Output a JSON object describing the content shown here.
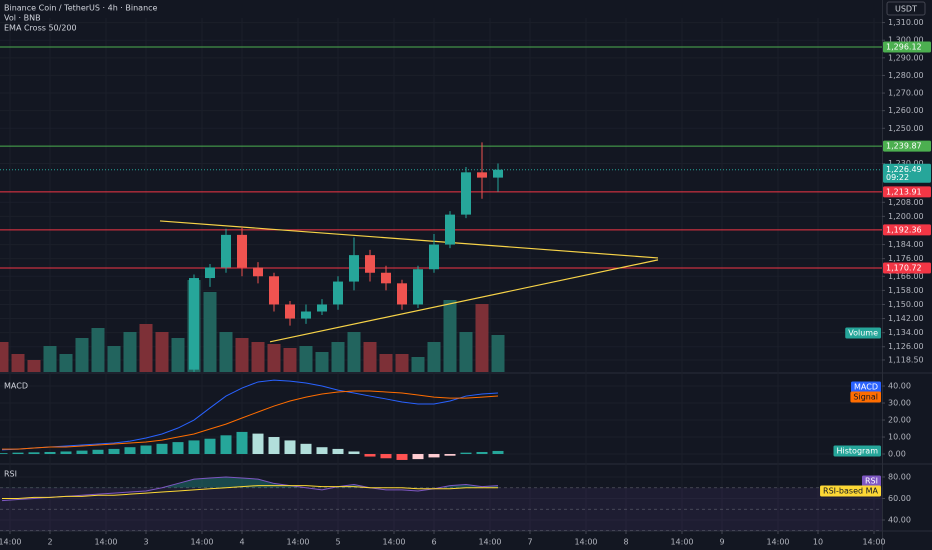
{
  "chart_data": [
    {
      "type": "candlestick",
      "title": "Binance Coin / TetherUS · 4h · Binance",
      "indicators": [
        "Vol · BNB",
        "EMA Cross 50/200"
      ],
      "currency": "USDT",
      "x": [
        36,
        40,
        44,
        48,
        52,
        56,
        60,
        64,
        68,
        72,
        76,
        80,
        84,
        88,
        92,
        96,
        100,
        104,
        108,
        112
      ],
      "open": [
        1113,
        1165,
        1171,
        1189.5,
        1171,
        1166,
        1150,
        1142,
        1146,
        1150,
        1163,
        1178,
        1168,
        1162,
        1150,
        1170,
        1184,
        1201,
        1225,
        1222
      ],
      "high": [
        1167,
        1173,
        1193,
        1194,
        1174,
        1168,
        1152,
        1150,
        1153,
        1166,
        1188,
        1181,
        1172,
        1164,
        1172,
        1190,
        1203,
        1228,
        1242,
        1230
      ],
      "low": [
        1110,
        1160,
        1168,
        1166,
        1162,
        1146,
        1138,
        1139,
        1144,
        1147,
        1158,
        1163,
        1158,
        1147,
        1148,
        1168,
        1182,
        1199,
        1210,
        1214
      ],
      "close": [
        1165,
        1171,
        1189.5,
        1171,
        1166,
        1150,
        1142,
        1146,
        1150,
        1163,
        1178,
        1168,
        1162,
        1150,
        1170,
        1184,
        1201,
        1225,
        1222,
        1226.49
      ],
      "up_color": "#26a69a",
      "down_color": "#ef5350",
      "xlim": [
        -12.5,
        208
      ],
      "xticks": [
        {
          "value": -10,
          "label": "14:00"
        },
        {
          "value": 0,
          "label": "2"
        },
        {
          "value": 14,
          "label": "14:00"
        },
        {
          "value": 24,
          "label": "3"
        },
        {
          "value": 38,
          "label": "14:00"
        },
        {
          "value": 48,
          "label": "4"
        },
        {
          "value": 62,
          "label": "14:00"
        },
        {
          "value": 72,
          "label": "5"
        },
        {
          "value": 86,
          "label": "14:00"
        },
        {
          "value": 96,
          "label": "6"
        },
        {
          "value": 110,
          "label": "14:00"
        },
        {
          "value": 120,
          "label": "7"
        },
        {
          "value": 134,
          "label": "14:00"
        },
        {
          "value": 144,
          "label": "8"
        },
        {
          "value": 158,
          "label": "14:00"
        },
        {
          "value": 168,
          "label": "9"
        },
        {
          "value": 182,
          "label": "14:00"
        },
        {
          "value": 192,
          "label": "10"
        },
        {
          "value": 206,
          "label": "14:00"
        }
      ],
      "ylim": [
        1112.8,
        1312.6
      ],
      "yticks": [
        {
          "value": 1118.5,
          "label": "1,118.50"
        },
        {
          "value": 1126,
          "label": "1,126.00"
        },
        {
          "value": 1134,
          "label": "1,134.00"
        },
        {
          "value": 1142,
          "label": "1,142.00"
        },
        {
          "value": 1150,
          "label": "1,150.00"
        },
        {
          "value": 1158,
          "label": "1,158.00"
        },
        {
          "value": 1166,
          "label": "1,166.00"
        },
        {
          "value": 1176,
          "label": "1,176.00"
        },
        {
          "value": 1184,
          "label": "1,184.00"
        },
        {
          "value": 1200,
          "label": "1,200.00"
        },
        {
          "value": 1208,
          "label": "1,208.00"
        },
        {
          "value": 1230,
          "label": "1,230.00"
        },
        {
          "value": 1250,
          "label": "1,250.00"
        },
        {
          "value": 1260,
          "label": "1,260.00"
        },
        {
          "value": 1270,
          "label": "1,270.00"
        },
        {
          "value": 1280,
          "label": "1,280.00"
        },
        {
          "value": 1290,
          "label": "1,290.00"
        },
        {
          "value": 1300,
          "label": "1,300.00"
        },
        {
          "value": 1310,
          "label": "1,310.00"
        }
      ],
      "levels": [
        {
          "value": 1296.12,
          "label": "1,296.12",
          "color": "#4caf50"
        },
        {
          "value": 1239.87,
          "label": "1,239.87",
          "color": "#4caf50"
        },
        {
          "value": 1213.91,
          "label": "1,213.91",
          "color": "#f23645"
        },
        {
          "value": 1192.36,
          "label": "1,192.36",
          "color": "#f23645"
        },
        {
          "value": 1170.72,
          "label": "1,170.72",
          "color": "#f23645"
        }
      ],
      "last": {
        "value": 1226.49,
        "label": "1,226.49",
        "countdown": "09:22",
        "color": "#26a69a"
      },
      "trendlines": [
        {
          "x": [
            27.5,
            152
          ],
          "y": [
            1197.4,
            1176.4
          ],
          "color": "#f7d348"
        },
        {
          "x": [
            55,
            152
          ],
          "y": [
            1128.8,
            1175.3
          ],
          "color": "#f7d348"
        }
      ],
      "volume": {
        "name": "Volume",
        "color": "#26a69a",
        "x": [
          -12,
          -8,
          -4,
          0,
          4,
          8,
          12,
          16,
          20,
          24,
          28,
          32,
          36,
          40,
          44,
          48,
          52,
          56,
          60,
          64,
          68,
          72,
          76,
          80,
          84,
          88,
          92,
          96,
          100,
          104,
          108,
          112
        ],
        "values": [
          30,
          18,
          12,
          26,
          18,
          34,
          44,
          26,
          40,
          48,
          40,
          34,
          92,
          80,
          40,
          34,
          30,
          28,
          24,
          26,
          20,
          30,
          40,
          30,
          18,
          18,
          15,
          30,
          72,
          40,
          68,
          37
        ],
        "colors": [
          "#7d3037",
          "#7d3037",
          "#7d3037",
          "#22645e",
          "#22645e",
          "#22645e",
          "#22645e",
          "#22645e",
          "#22645e",
          "#7d3037",
          "#7d3037",
          "#22645e",
          "#22645e",
          "#22645e",
          "#22645e",
          "#7d3037",
          "#7d3037",
          "#7d3037",
          "#7d3037",
          "#22645e",
          "#22645e",
          "#22645e",
          "#22645e",
          "#7d3037",
          "#7d3037",
          "#7d3037",
          "#22645e",
          "#22645e",
          "#22645e",
          "#22645e",
          "#7d3037",
          "#22645e"
        ],
        "ylim": [
          0,
          100
        ]
      }
    },
    {
      "type": "macd",
      "title": "MACD",
      "x": [
        -12,
        -8,
        -4,
        0,
        4,
        8,
        12,
        16,
        20,
        24,
        28,
        32,
        36,
        40,
        44,
        48,
        52,
        56,
        60,
        64,
        68,
        72,
        76,
        80,
        84,
        88,
        92,
        96,
        100,
        104,
        108,
        112
      ],
      "xlim": [
        -12.5,
        208
      ],
      "ylim": [
        -4.7,
        45.9
      ],
      "yticks": [
        {
          "value": 0,
          "label": "0.00"
        },
        {
          "value": 10,
          "label": "10.00"
        },
        {
          "value": 20,
          "label": "20.00"
        },
        {
          "value": 30,
          "label": "30.00"
        },
        {
          "value": 40,
          "label": "40.00"
        }
      ],
      "series": [
        {
          "name": "MACD",
          "color": "#2962ff",
          "values": [
            2.4,
            2.9,
            3.5,
            4.1,
            4.7,
            5.3,
            5.9,
            6.5,
            7.6,
            9.4,
            11.8,
            15.3,
            20,
            27.1,
            34.1,
            38.8,
            42.4,
            43.5,
            42.9,
            41.8,
            40,
            37.6,
            35.9,
            34.1,
            32.4,
            30.6,
            29.4,
            29.4,
            31.2,
            34.1,
            35.3,
            35.9
          ]
        },
        {
          "name": "Signal",
          "color": "#ff6d00",
          "values": [
            2.9,
            2.9,
            3.5,
            4.1,
            4.1,
            4.7,
            5.3,
            5.9,
            6.5,
            7.1,
            8.2,
            10,
            11.8,
            14.7,
            17.6,
            21.2,
            24.7,
            28.2,
            31.2,
            33.5,
            35.3,
            36.5,
            37.1,
            37.1,
            36.5,
            35.9,
            34.7,
            33.5,
            32.9,
            32.9,
            33.5,
            34.1
          ]
        }
      ],
      "histogram": {
        "name": "Histogram",
        "color": "#26a69a",
        "values": [
          0.5,
          0.8,
          1,
          1.2,
          1.5,
          2,
          2.5,
          3,
          4,
          5,
          6,
          7,
          8,
          9,
          11,
          13,
          12,
          10,
          8,
          6,
          4,
          3,
          1.5,
          -1.5,
          -2.5,
          -3.5,
          -3,
          -2,
          -1,
          0.8,
          1.2,
          1.8
        ],
        "colors": [
          "#26a69a",
          "#26a69a",
          "#26a69a",
          "#26a69a",
          "#26a69a",
          "#26a69a",
          "#26a69a",
          "#26a69a",
          "#26a69a",
          "#26a69a",
          "#26a69a",
          "#26a69a",
          "#26a69a",
          "#26a69a",
          "#26a69a",
          "#26a69a",
          "#b2dfdb",
          "#b2dfdb",
          "#b2dfdb",
          "#b2dfdb",
          "#b2dfdb",
          "#b2dfdb",
          "#b2dfdb",
          "#ff5252",
          "#ff5252",
          "#ff5252",
          "#ffcdd2",
          "#ffcdd2",
          "#ffcdd2",
          "#26a69a",
          "#26a69a",
          "#26a69a"
        ]
      }
    },
    {
      "type": "rsi",
      "title": "RSI",
      "x": [
        -12,
        -8,
        -4,
        0,
        4,
        8,
        12,
        16,
        20,
        24,
        28,
        32,
        36,
        40,
        44,
        48,
        52,
        56,
        60,
        64,
        68,
        72,
        76,
        80,
        84,
        88,
        92,
        96,
        100,
        104,
        108,
        112
      ],
      "xlim": [
        -12.5,
        208
      ],
      "ylim": [
        30.7,
        90.2
      ],
      "yticks": [
        {
          "value": 40,
          "label": "40.00"
        },
        {
          "value": 60,
          "label": "60.00"
        },
        {
          "value": 80,
          "label": "80.00"
        }
      ],
      "bands": [
        70,
        50,
        30
      ],
      "band_color": "#7e57c2",
      "overbought_color": "#26a69a",
      "series": [
        {
          "name": "RSI",
          "color": "#7e57c2",
          "values": [
            58,
            59,
            60,
            61,
            62,
            63,
            64,
            65,
            66,
            67,
            70,
            74,
            78,
            79,
            80,
            79,
            78,
            74,
            72,
            70,
            68,
            71,
            73,
            70,
            68,
            68,
            67,
            69,
            72,
            73,
            71,
            72
          ]
        },
        {
          "name": "RSI-based MA",
          "color": "#fdd835",
          "values": [
            60,
            60,
            61,
            61,
            62,
            62,
            63,
            63,
            64,
            65,
            66,
            67,
            68,
            69,
            70,
            71,
            72,
            72,
            72,
            72,
            71,
            71,
            71,
            70,
            70,
            70,
            69,
            69,
            69,
            70,
            70,
            70
          ]
        }
      ]
    }
  ]
}
